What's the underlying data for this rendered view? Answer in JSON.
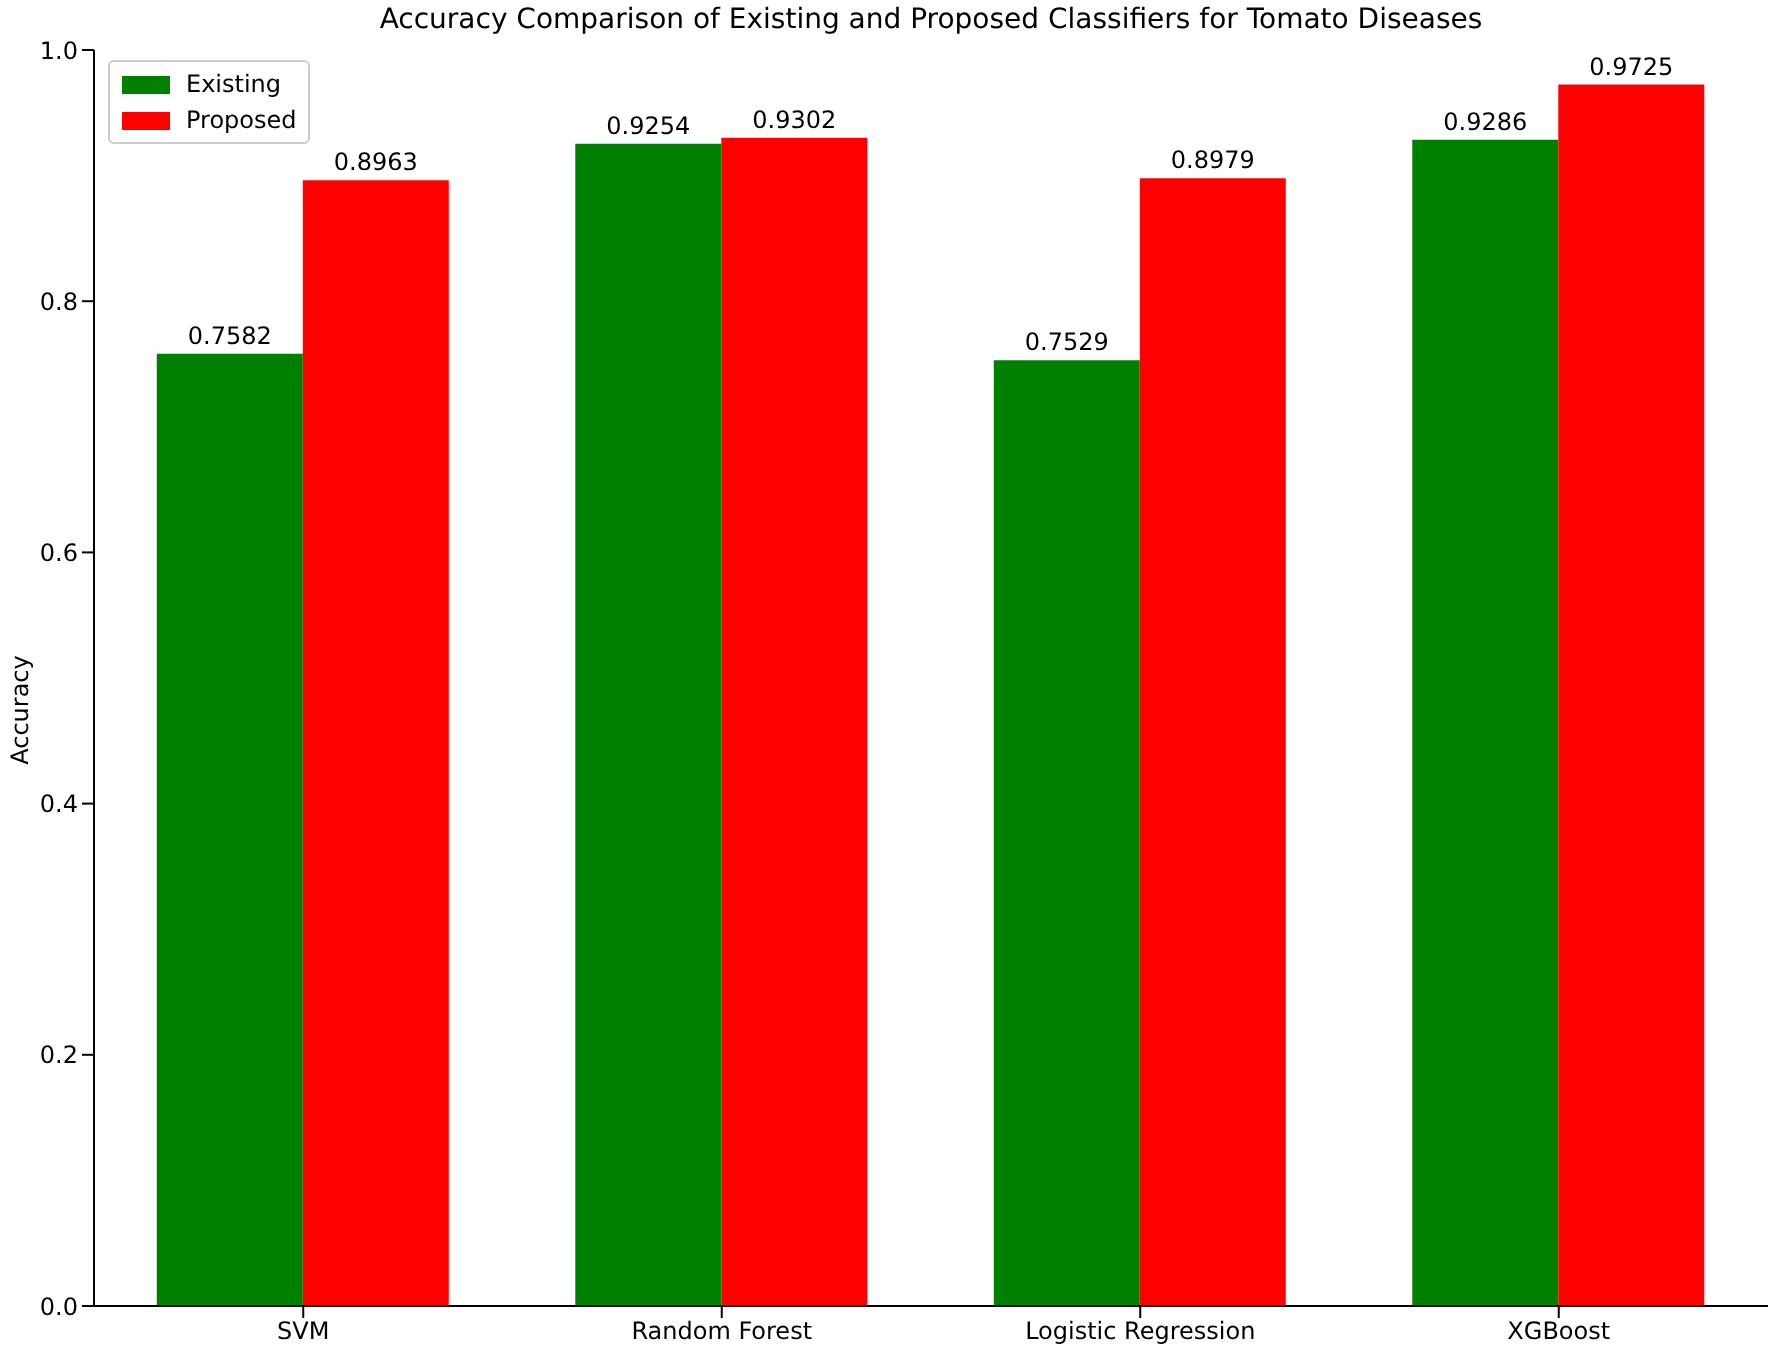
{
  "chart_data": {
    "type": "bar",
    "title": "Accuracy Comparison of Existing and Proposed Classifiers for Tomato Diseases",
    "ylabel": "Accuracy",
    "categories": [
      "SVM",
      "Random Forest",
      "Logistic Regression",
      "XGBoost"
    ],
    "series": [
      {
        "name": "Existing",
        "color": "#008000",
        "values": [
          0.7582,
          0.9254,
          0.7529,
          0.9286
        ]
      },
      {
        "name": "Proposed",
        "color": "#ff0000",
        "values": [
          0.8963,
          0.9302,
          0.8979,
          0.9725
        ]
      }
    ],
    "ylim": [
      0,
      1
    ],
    "yticks": [
      {
        "value": 0,
        "label": "0.0"
      },
      {
        "value": 0.2,
        "label": "0.2"
      },
      {
        "value": 0.4,
        "label": "0.4"
      },
      {
        "value": 0.6,
        "label": "0.6"
      },
      {
        "value": 0.8,
        "label": "0.8"
      },
      {
        "value": 1,
        "label": "1.0"
      }
    ],
    "data_labels": true,
    "legend": "top left"
  }
}
